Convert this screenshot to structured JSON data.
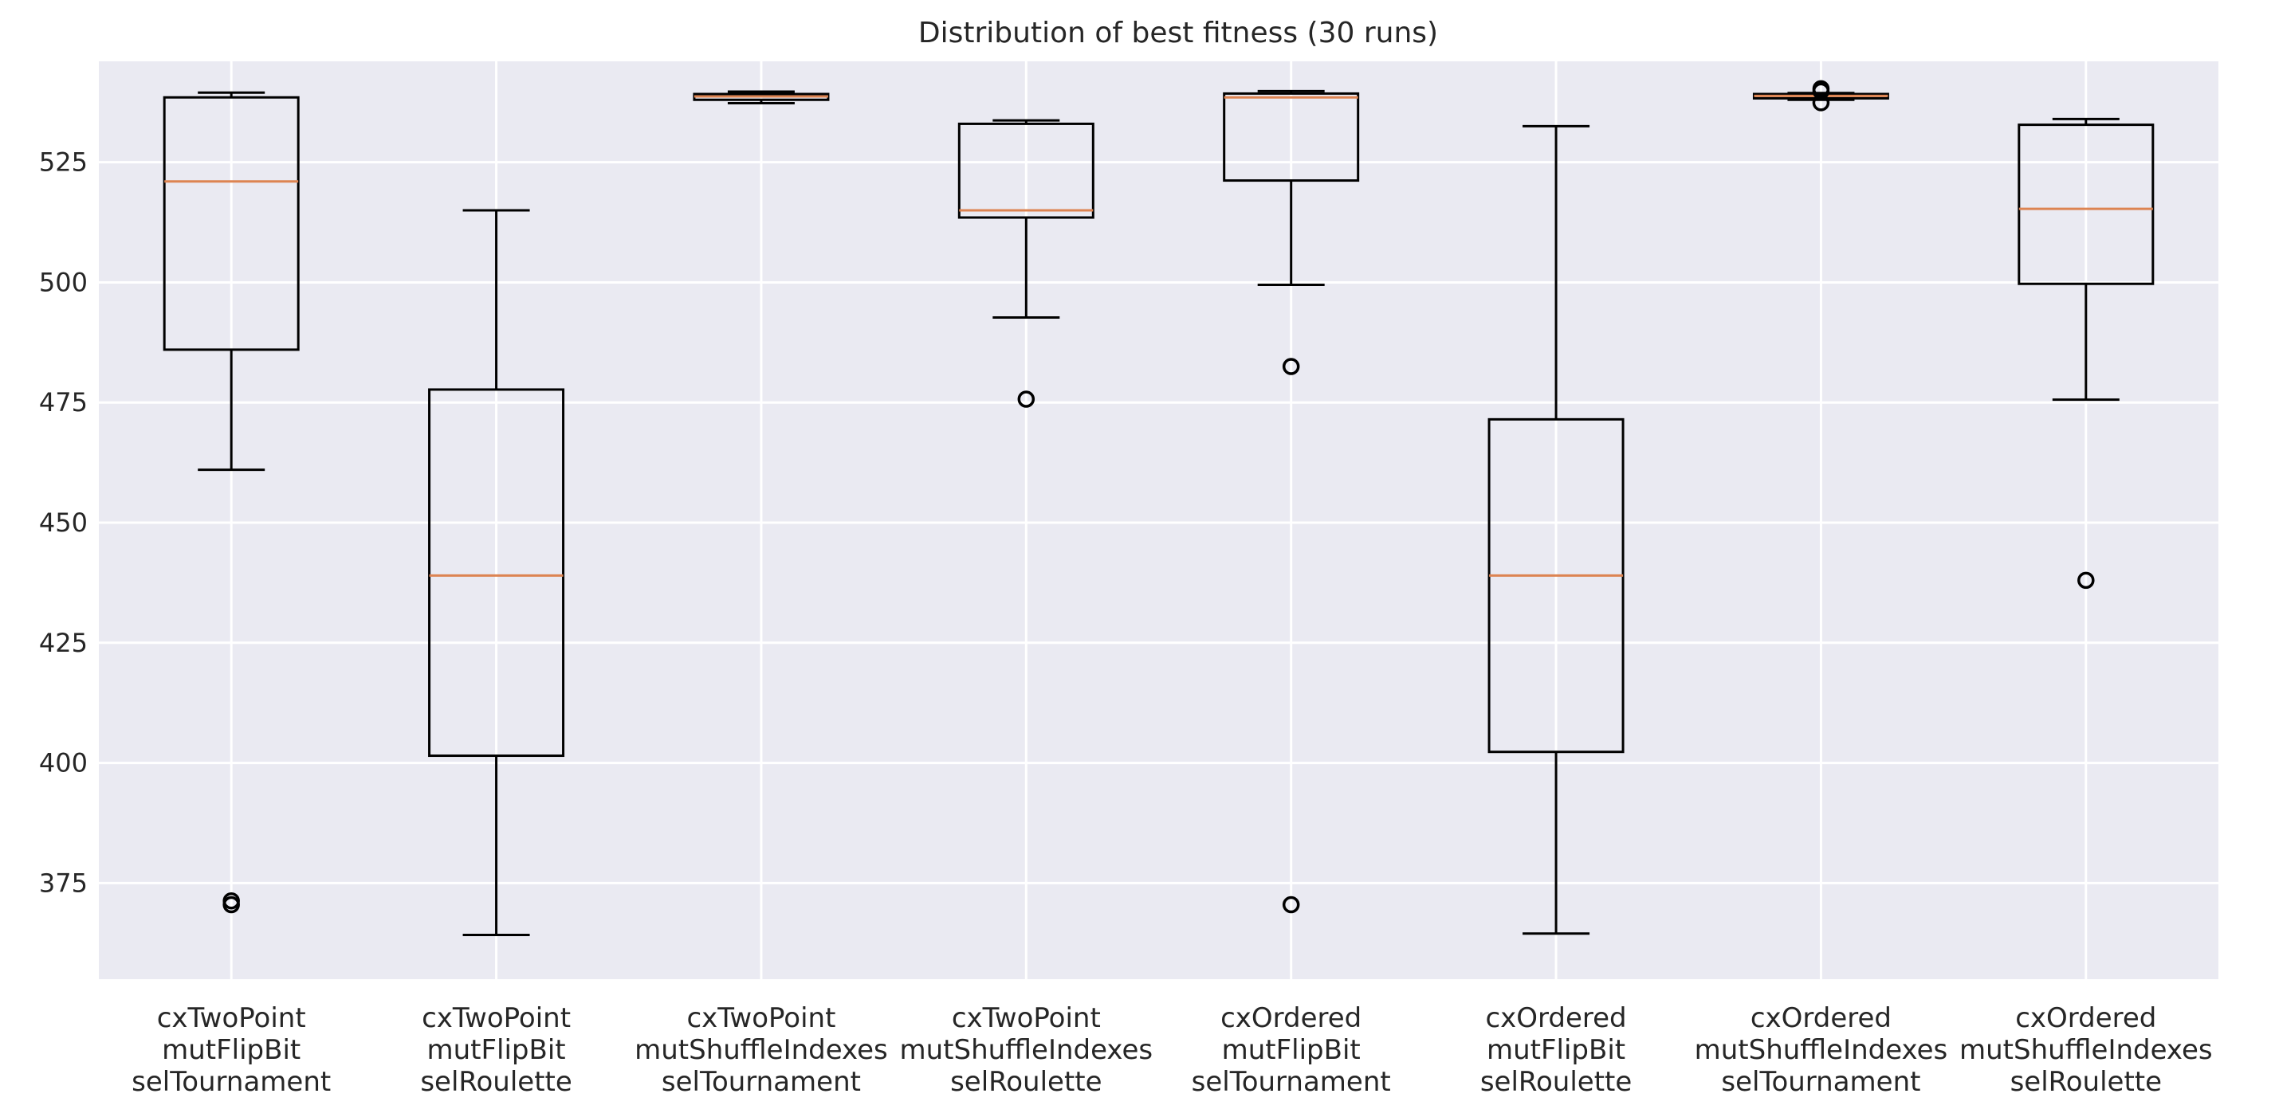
{
  "chart_data": {
    "type": "box",
    "title": "Distribution of best fitness (30 runs)",
    "xlabel": "",
    "ylabel": "",
    "ylim": [
      355,
      546
    ],
    "yticks": [
      375,
      400,
      425,
      450,
      475,
      500,
      525
    ],
    "grid": true,
    "colors": {
      "background": "#eaeaf2",
      "grid": "#ffffff",
      "box": "#000000",
      "median": "#dd8452",
      "text": "#262626"
    },
    "categories": [
      [
        "cxTwoPoint",
        "mutFlipBit",
        "selTournament"
      ],
      [
        "cxTwoPoint",
        "mutFlipBit",
        "selRoulette"
      ],
      [
        "cxTwoPoint",
        "mutShuffleIndexes",
        "selTournament"
      ],
      [
        "cxTwoPoint",
        "mutShuffleIndexes",
        "selRoulette"
      ],
      [
        "cxOrdered",
        "mutFlipBit",
        "selTournament"
      ],
      [
        "cxOrdered",
        "mutFlipBit",
        "selRoulette"
      ],
      [
        "cxOrdered",
        "mutShuffleIndexes",
        "selTournament"
      ],
      [
        "cxOrdered",
        "mutShuffleIndexes",
        "selRoulette"
      ]
    ],
    "boxes": [
      {
        "whislo": 461,
        "q1": 486,
        "med": 521,
        "q3": 538.5,
        "whishi": 539.5,
        "fliers": [
          370.5,
          371.3
        ]
      },
      {
        "whislo": 364.2,
        "q1": 401.5,
        "med": 439,
        "q3": 477.7,
        "whishi": 515,
        "fliers": []
      },
      {
        "whislo": 537.3,
        "q1": 538,
        "med": 538.7,
        "q3": 539.2,
        "whishi": 539.7,
        "fliers": []
      },
      {
        "whislo": 492.7,
        "q1": 513.5,
        "med": 515,
        "q3": 533,
        "whishi": 533.7,
        "fliers": [
          475.7
        ]
      },
      {
        "whislo": 499.5,
        "q1": 521.2,
        "med": 538.5,
        "q3": 539.3,
        "whishi": 539.8,
        "fliers": [
          482.5,
          370.5
        ]
      },
      {
        "whislo": 364.5,
        "q1": 402.3,
        "med": 439,
        "q3": 471.5,
        "whishi": 532.5,
        "fliers": []
      },
      {
        "whislo": 538,
        "q1": 538.3,
        "med": 538.8,
        "q3": 539.2,
        "whishi": 539.4,
        "fliers": [
          537.4,
          540.3,
          539.8
        ]
      },
      {
        "whislo": 475.6,
        "q1": 499.7,
        "med": 515.3,
        "q3": 532.8,
        "whishi": 534,
        "fliers": [
          438
        ]
      }
    ]
  }
}
